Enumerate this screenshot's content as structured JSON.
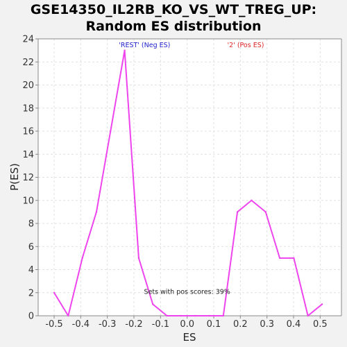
{
  "chart_data": {
    "type": "line",
    "title": "GSE14350_IL2RB_KO_VS_WT_TREG_UP:",
    "subtitle": "Random ES distribution",
    "xlabel": "ES",
    "ylabel": "P(ES)",
    "xlim": [
      -0.56,
      0.58
    ],
    "ylim": [
      0,
      24
    ],
    "x_ticks": [
      -0.5,
      -0.4,
      -0.3,
      -0.2,
      -0.1,
      0.0,
      0.1,
      0.2,
      0.3,
      0.4,
      0.5
    ],
    "x_tick_labels": [
      "-0.5",
      "-0.4",
      "-0.3",
      "-0.2",
      "-0.1",
      "0.0",
      "0.1",
      "0.2",
      "0.3",
      "0.4",
      "0.5"
    ],
    "y_ticks": [
      0,
      2,
      4,
      6,
      8,
      10,
      12,
      14,
      16,
      18,
      20,
      22,
      24
    ],
    "y_tick_labels": [
      "0",
      "2",
      "4",
      "6",
      "8",
      "10",
      "12",
      "14",
      "16",
      "18",
      "20",
      "22",
      "24"
    ],
    "grid": true,
    "series": [
      {
        "color": "#ee44ee",
        "x": [
          -0.5,
          -0.447,
          -0.394,
          -0.341,
          -0.288,
          -0.235,
          -0.182,
          -0.129,
          -0.076,
          -0.023,
          0.03,
          0.083,
          0.136,
          0.189,
          0.242,
          0.295,
          0.348,
          0.401,
          0.454,
          0.507
        ],
        "y": [
          2,
          0,
          5,
          9,
          16,
          23,
          5,
          1,
          0,
          0,
          0,
          0,
          0,
          9,
          10,
          9,
          5,
          5,
          0,
          1
        ]
      }
    ],
    "legend": [
      {
        "label": "'REST' (Neg ES)",
        "color": "#2222cc",
        "at_x": -0.16
      },
      {
        "label": "'2' (Pos ES)",
        "color": "#dd2222",
        "at_x": 0.22
      }
    ],
    "annotation": {
      "text": "Sets with pos scores: 39%",
      "x": 0.0,
      "y": 1.9
    }
  }
}
